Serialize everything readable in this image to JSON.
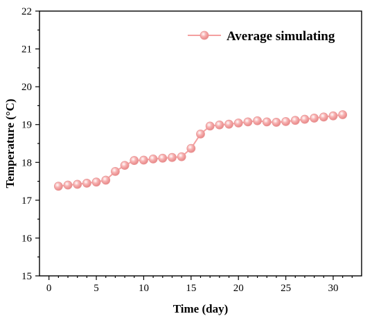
{
  "chart_data": {
    "type": "line",
    "xlabel": "Time (day)",
    "ylabel": "Temperature (°C)",
    "xlim": [
      -1,
      33
    ],
    "ylim": [
      15,
      22
    ],
    "xticks": [
      0,
      5,
      10,
      15,
      20,
      25,
      30
    ],
    "yticks": [
      15,
      16,
      17,
      18,
      19,
      20,
      21,
      22
    ],
    "grid": false,
    "legend_position": "top-right",
    "series": [
      {
        "name": "Average simulating",
        "color": "#f4a0a0",
        "marker": "circle",
        "x": [
          1,
          2,
          3,
          4,
          5,
          6,
          7,
          8,
          9,
          10,
          11,
          12,
          13,
          14,
          15,
          16,
          17,
          18,
          19,
          20,
          21,
          22,
          23,
          24,
          25,
          26,
          27,
          28,
          29,
          30,
          31
        ],
        "y": [
          17.37,
          17.4,
          17.42,
          17.45,
          17.48,
          17.53,
          17.76,
          17.92,
          18.05,
          18.06,
          18.09,
          18.11,
          18.13,
          18.15,
          18.37,
          18.75,
          18.96,
          18.99,
          19.01,
          19.04,
          19.07,
          19.1,
          19.07,
          19.06,
          19.08,
          19.11,
          19.14,
          19.17,
          19.2,
          19.23,
          19.26
        ]
      }
    ]
  }
}
